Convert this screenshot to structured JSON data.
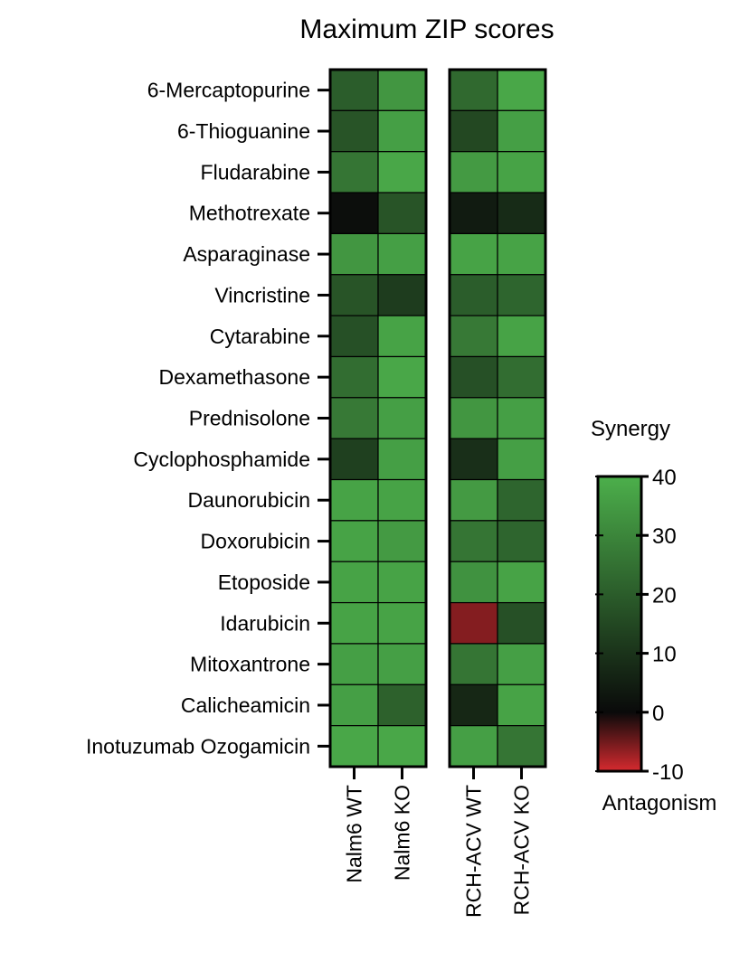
{
  "chart_data": {
    "type": "heatmap",
    "title": "Maximum ZIP scores",
    "rows": [
      "6-Mercaptopurine",
      "6-Thioguanine",
      "Fludarabine",
      "Methotrexate",
      "Asparaginase",
      "Vincristine",
      "Cytarabine",
      "Dexamethasone",
      "Prednisolone",
      "Cyclophosphamide",
      "Daunorubicin",
      "Doxorubicin",
      "Etoposide",
      "Idarubicin",
      "Mitoxantrone",
      "Calicheamicin",
      "Inotuzumab Ozogamicin"
    ],
    "panels": [
      {
        "columns": [
          "Nalm6 WT",
          "Nalm6 KO"
        ],
        "values": [
          [
            20,
            34
          ],
          [
            18,
            36
          ],
          [
            26,
            38
          ],
          [
            1,
            18
          ],
          [
            34,
            36
          ],
          [
            18,
            12
          ],
          [
            17,
            37
          ],
          [
            24,
            38
          ],
          [
            27,
            36
          ],
          [
            13,
            36
          ],
          [
            37,
            37
          ],
          [
            37,
            35
          ],
          [
            37,
            37
          ],
          [
            37,
            37
          ],
          [
            36,
            36
          ],
          [
            36,
            21
          ],
          [
            38,
            38
          ]
        ]
      },
      {
        "columns": [
          "RCH-ACV WT",
          "RCH-ACV KO"
        ],
        "values": [
          [
            23,
            38
          ],
          [
            15,
            36
          ],
          [
            35,
            37
          ],
          [
            4,
            8
          ],
          [
            37,
            37
          ],
          [
            20,
            22
          ],
          [
            27,
            37
          ],
          [
            17,
            24
          ],
          [
            34,
            36
          ],
          [
            9,
            36
          ],
          [
            35,
            22
          ],
          [
            26,
            22
          ],
          [
            33,
            37
          ],
          [
            -6,
            17
          ],
          [
            26,
            36
          ],
          [
            7,
            37
          ],
          [
            36,
            26
          ]
        ]
      }
    ],
    "colorbar": {
      "title_top": "Synergy",
      "title_bottom": "Antagonism",
      "range": [
        -10,
        40
      ],
      "ticks": [
        40,
        30,
        20,
        10,
        0,
        -10
      ],
      "tick_labels": [
        "40",
        "30",
        "20",
        "10",
        "0",
        "-10"
      ],
      "colors": {
        "low": "#d62a2f",
        "zero": "#0a0a0a",
        "high": "#4caf4b"
      }
    }
  }
}
